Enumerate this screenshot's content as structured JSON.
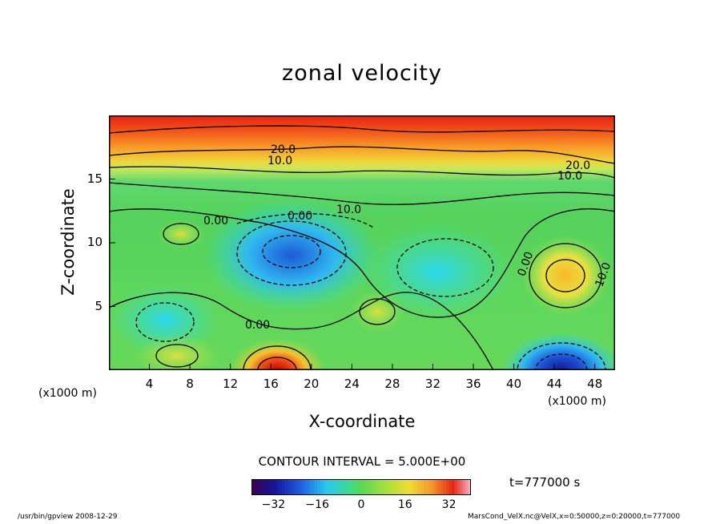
{
  "chart_data": {
    "type": "heatmap",
    "title": "zonal velocity",
    "xlabel": "X-coordinate",
    "ylabel": "Z-coordinate",
    "x_unit_label": "(x1000 m)",
    "xlim": [
      0,
      50
    ],
    "ylim": [
      0,
      20
    ],
    "x_ticks": [
      4,
      8,
      12,
      16,
      20,
      24,
      28,
      32,
      36,
      40,
      44,
      48
    ],
    "y_ticks": [
      5,
      10,
      15
    ],
    "contour_labels": [
      "20.0",
      "10.0",
      "20.0",
      "10.0",
      "0.00",
      "0.00",
      "10.0",
      "0.00",
      "10.0",
      "0.00"
    ],
    "contour_interval": "CONTOUR INTERVAL = 5.000E+00",
    "colorbar": {
      "ticks": [
        -32,
        -16,
        0,
        16,
        32
      ],
      "range": [
        -40,
        40
      ]
    },
    "time_label": "t=777000 s",
    "fields": [
      {
        "feature": "upper jet",
        "z_range": [
          16,
          20
        ],
        "value": 25
      },
      {
        "feature": "mid-level minimum",
        "x": 17,
        "z": 9.5,
        "value": -16
      },
      {
        "feature": "mid-level minimum",
        "x": 33,
        "z": 8,
        "value": -10
      },
      {
        "feature": "surface maximum",
        "x": 18,
        "z": 0.5,
        "value": 35
      },
      {
        "feature": "surface minimum",
        "x": 45,
        "z": 0.5,
        "value": -30
      },
      {
        "feature": "mid-level maximum",
        "x": 45,
        "z": 7.5,
        "value": 15
      },
      {
        "feature": "low-level minimum",
        "x": 6,
        "z": 4,
        "value": -14
      }
    ]
  },
  "footer_left": "/usr/bin/gpview   2008-12-29",
  "footer_right": "MarsCond_VelX.nc@VelX,x=0:50000,z=0:20000,t=777000"
}
